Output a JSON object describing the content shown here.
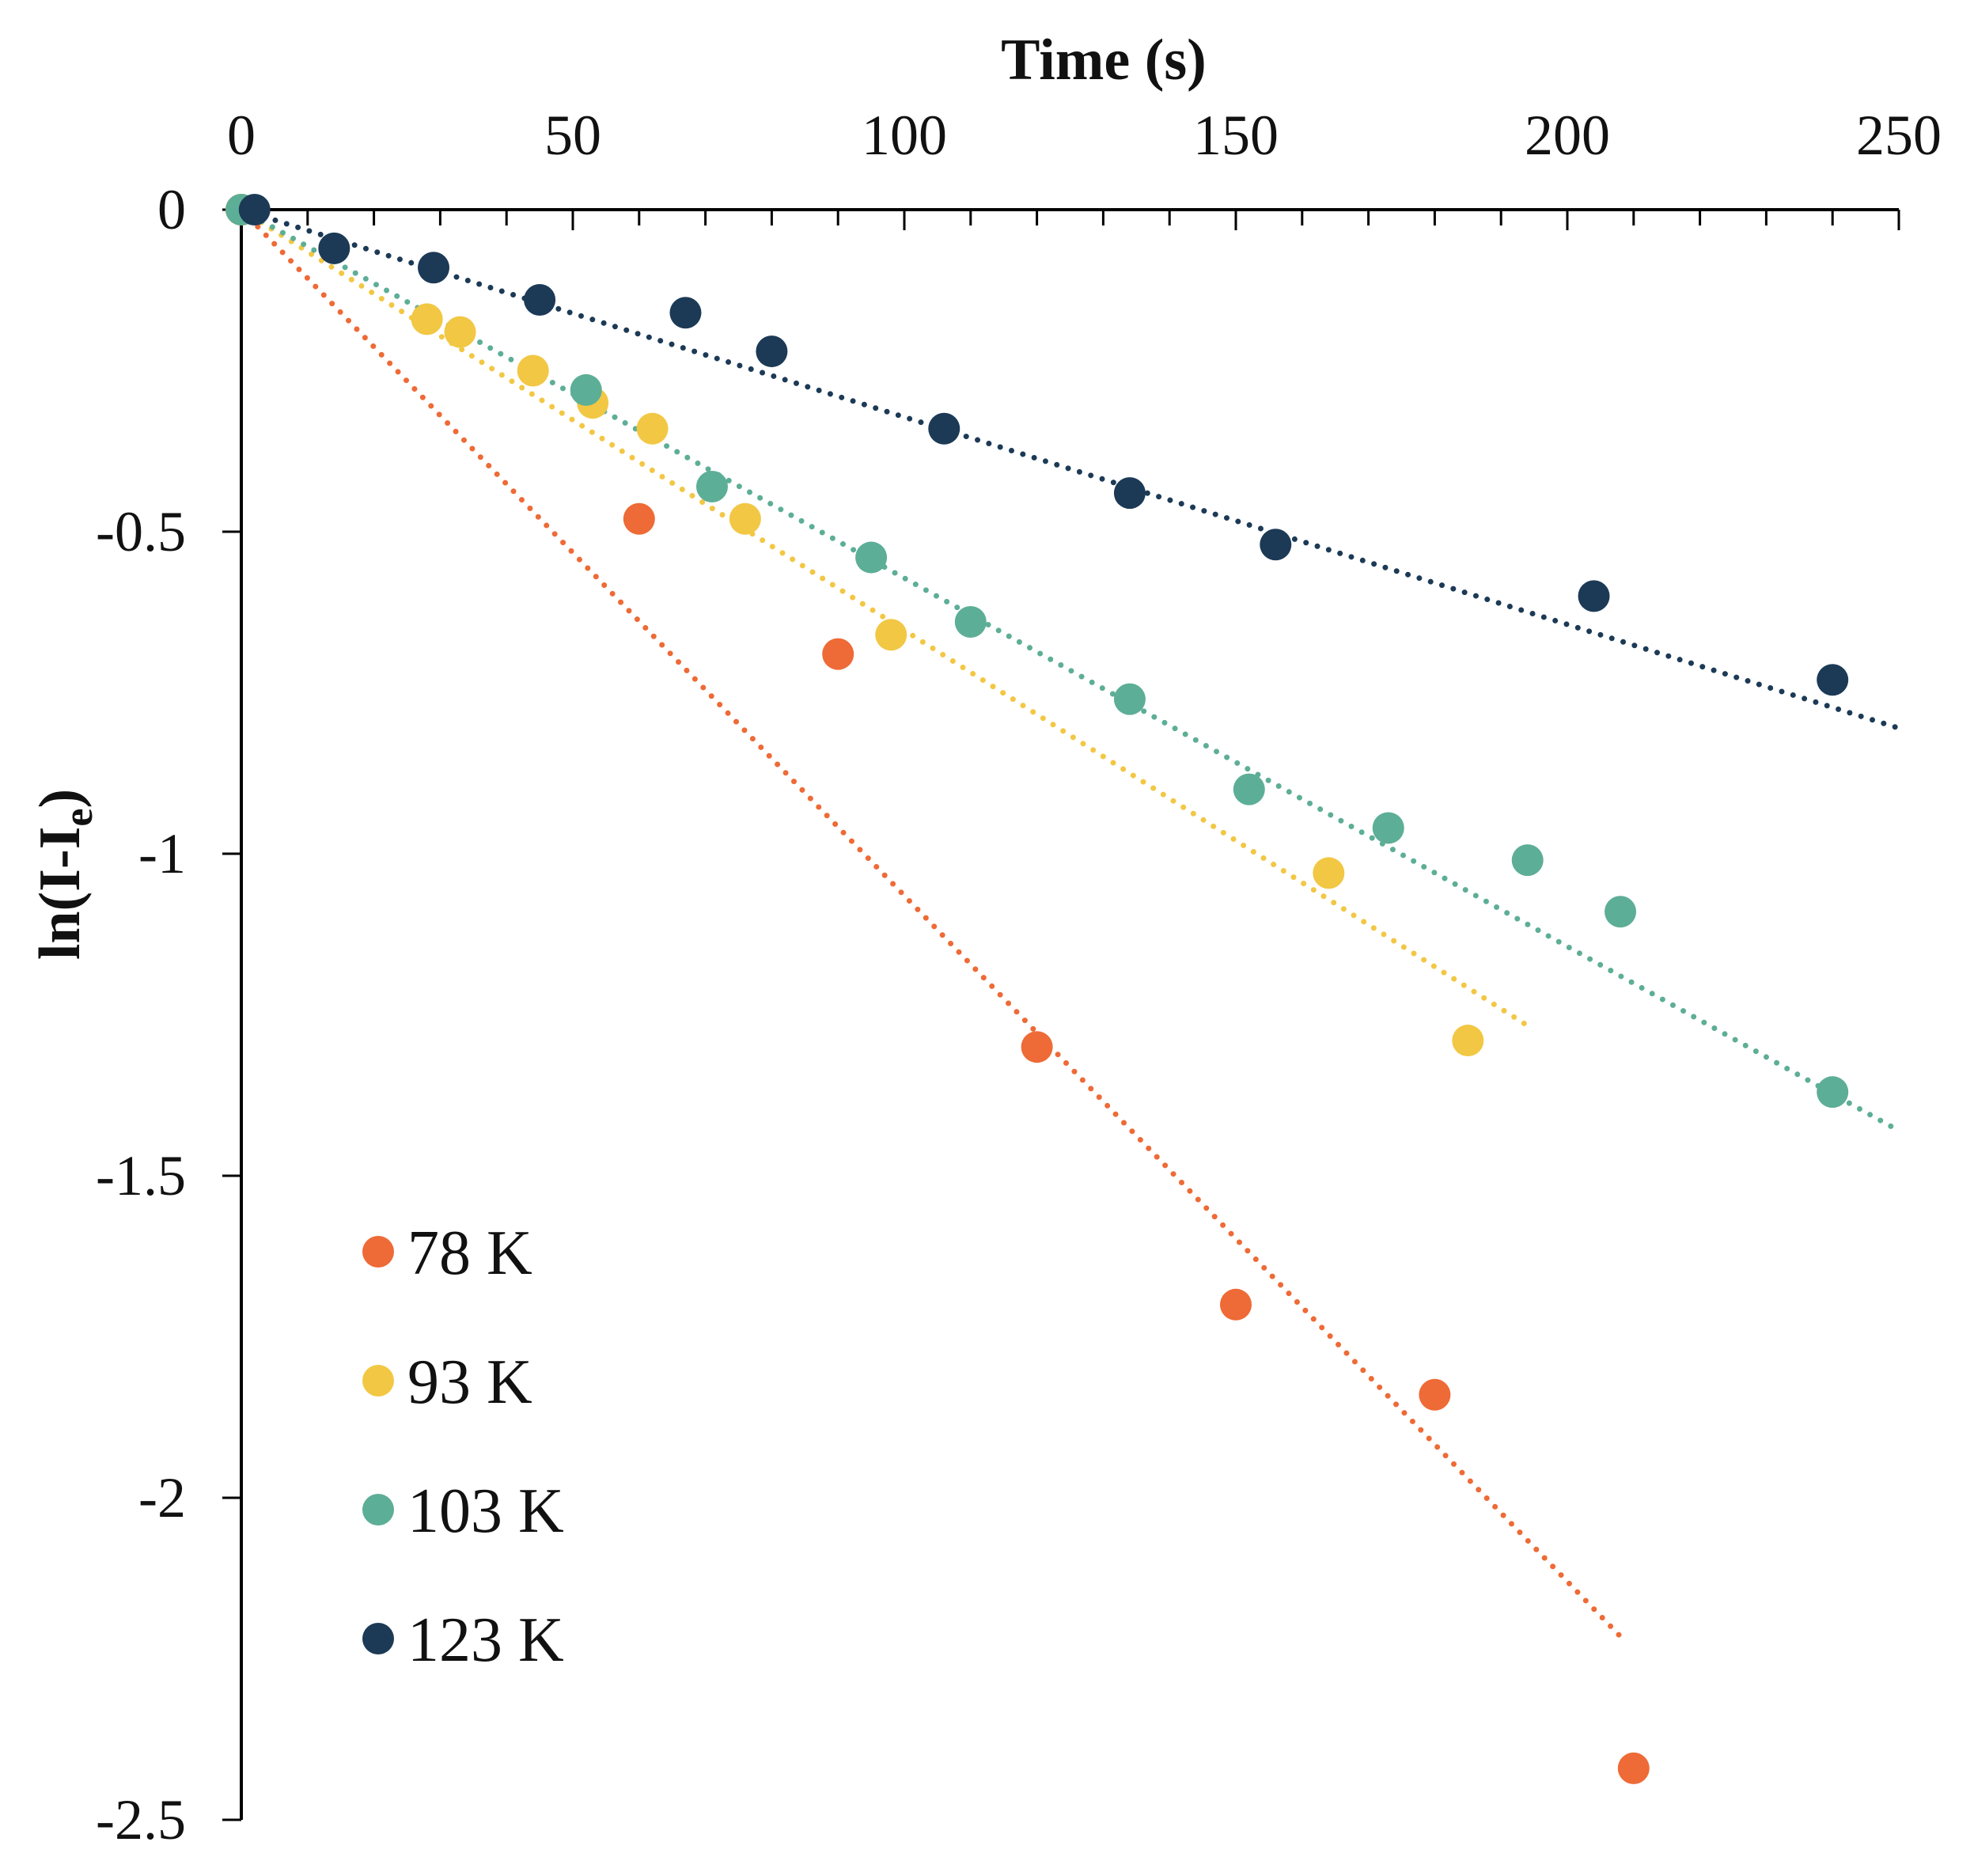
{
  "chart_data": {
    "type": "scatter",
    "title": "",
    "xlabel": "Time (s)",
    "ylabel_main": "ln(I-I",
    "ylabel_sub": "e",
    "ylabel_end": ")",
    "xlim": [
      0,
      250
    ],
    "ylim": [
      -2.5,
      0
    ],
    "x_ticks": [
      0,
      50,
      100,
      150,
      200,
      250
    ],
    "x_tick_labels": [
      "0",
      "50",
      "100",
      "150",
      "200",
      "250"
    ],
    "y_ticks": [
      0,
      -0.5,
      -1,
      -1.5,
      -2,
      -2.5
    ],
    "y_tick_labels": [
      "0",
      "-0.5",
      "-1",
      "-1.5",
      "-2",
      "-2.5"
    ],
    "x_minor_step": 10,
    "grid": false,
    "legend_position": "lower-left",
    "series": [
      {
        "name": "78 K",
        "color": "#EE6A36",
        "points": [
          [
            0,
            0
          ],
          [
            60,
            -0.48
          ],
          [
            90,
            -0.69
          ],
          [
            120,
            -1.3
          ],
          [
            150,
            -1.7
          ],
          [
            180,
            -1.84
          ],
          [
            210,
            -2.42
          ]
        ],
        "trendline": {
          "slope": -0.01065,
          "intercept": 0,
          "x_range": [
            0,
            208
          ]
        }
      },
      {
        "name": "93 K",
        "color": "#F2C744",
        "points": [
          [
            0,
            0
          ],
          [
            28,
            -0.17
          ],
          [
            33,
            -0.19
          ],
          [
            44,
            -0.25
          ],
          [
            53,
            -0.3
          ],
          [
            62,
            -0.34
          ],
          [
            76,
            -0.48
          ],
          [
            98,
            -0.66
          ],
          [
            164,
            -1.03
          ],
          [
            185,
            -1.29
          ]
        ],
        "trendline": {
          "slope": -0.00653,
          "intercept": 0,
          "x_range": [
            0,
            194
          ]
        }
      },
      {
        "name": "103 K",
        "color": "#5DAE96",
        "points": [
          [
            0,
            0
          ],
          [
            52,
            -0.28
          ],
          [
            71,
            -0.43
          ],
          [
            95,
            -0.54
          ],
          [
            110,
            -0.64
          ],
          [
            134,
            -0.76
          ],
          [
            152,
            -0.9
          ],
          [
            173,
            -0.96
          ],
          [
            194,
            -1.01
          ],
          [
            208,
            -1.09
          ],
          [
            240,
            -1.37
          ]
        ],
        "trendline": {
          "slope": -0.00572,
          "intercept": 0,
          "x_range": [
            0,
            250
          ]
        }
      },
      {
        "name": "123 K",
        "color": "#1C3A56",
        "points": [
          [
            2,
            0
          ],
          [
            14,
            -0.06
          ],
          [
            29,
            -0.09
          ],
          [
            45,
            -0.14
          ],
          [
            67,
            -0.16
          ],
          [
            80,
            -0.22
          ],
          [
            106,
            -0.34
          ],
          [
            134,
            -0.44
          ],
          [
            156,
            -0.52
          ],
          [
            204,
            -0.6
          ],
          [
            240,
            -0.73
          ]
        ],
        "trendline": {
          "slope": -0.00322,
          "intercept": 0,
          "x_range": [
            0,
            250
          ]
        }
      }
    ]
  }
}
